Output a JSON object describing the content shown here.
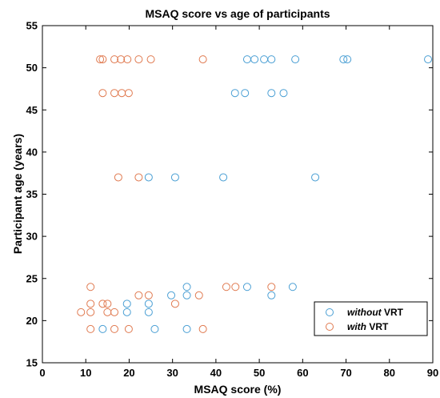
{
  "chart_data": {
    "type": "scatter",
    "title": "MSAQ score vs age of participants",
    "xlabel": "MSAQ score (%)",
    "ylabel": "Participant age (years)",
    "xlim": [
      0,
      90
    ],
    "ylim": [
      15,
      55
    ],
    "xticks": [
      0,
      10,
      20,
      30,
      40,
      50,
      60,
      70,
      80,
      90
    ],
    "yticks": [
      15,
      20,
      25,
      30,
      35,
      40,
      45,
      50,
      55
    ],
    "grid": false,
    "legend_position": "bottom-right",
    "series": [
      {
        "name_em": "without",
        "name_rest": " VRT",
        "color": "#4a9fd4",
        "points": [
          [
            47.2,
            51
          ],
          [
            48.9,
            51
          ],
          [
            51.1,
            51
          ],
          [
            52.8,
            51
          ],
          [
            58.3,
            51
          ],
          [
            69.4,
            51
          ],
          [
            70.3,
            51
          ],
          [
            88.9,
            51
          ],
          [
            44.4,
            47
          ],
          [
            46.7,
            47
          ],
          [
            52.8,
            47
          ],
          [
            55.6,
            47
          ],
          [
            24.5,
            37
          ],
          [
            30.6,
            37
          ],
          [
            41.7,
            37
          ],
          [
            62.9,
            37
          ],
          [
            33.3,
            24
          ],
          [
            47.2,
            24
          ],
          [
            57.7,
            24
          ],
          [
            29.7,
            23
          ],
          [
            33.3,
            23
          ],
          [
            52.8,
            23
          ],
          [
            19.5,
            22
          ],
          [
            24.5,
            22
          ],
          [
            19.5,
            21
          ],
          [
            24.5,
            21
          ],
          [
            13.9,
            19
          ],
          [
            25.9,
            19
          ],
          [
            33.3,
            19
          ]
        ]
      },
      {
        "name_em": "with",
        "name_rest": " VRT",
        "color": "#e07a50",
        "points": [
          [
            13.3,
            51
          ],
          [
            13.9,
            51
          ],
          [
            16.6,
            51
          ],
          [
            18.1,
            51
          ],
          [
            19.6,
            51
          ],
          [
            22.2,
            51
          ],
          [
            25.0,
            51
          ],
          [
            37.0,
            51
          ],
          [
            13.9,
            47
          ],
          [
            16.6,
            47
          ],
          [
            18.3,
            47
          ],
          [
            19.9,
            47
          ],
          [
            17.5,
            37
          ],
          [
            22.2,
            37
          ],
          [
            11.1,
            24
          ],
          [
            42.4,
            24
          ],
          [
            44.5,
            24
          ],
          [
            52.8,
            24
          ],
          [
            22.2,
            23
          ],
          [
            24.5,
            23
          ],
          [
            36.1,
            23
          ],
          [
            11.1,
            22
          ],
          [
            13.9,
            22
          ],
          [
            15.0,
            22
          ],
          [
            30.6,
            22
          ],
          [
            8.9,
            21
          ],
          [
            11.1,
            21
          ],
          [
            15.0,
            21
          ],
          [
            16.6,
            21
          ],
          [
            11.1,
            19
          ],
          [
            16.6,
            19
          ],
          [
            19.9,
            19
          ],
          [
            37.0,
            19
          ]
        ]
      }
    ]
  }
}
